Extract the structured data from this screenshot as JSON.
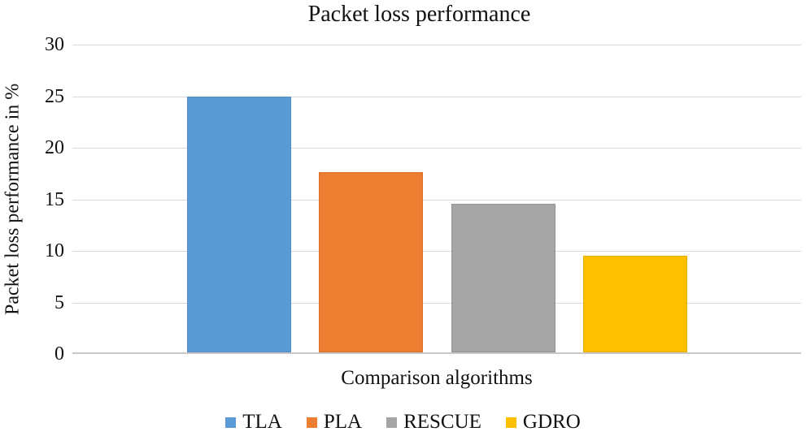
{
  "chart_data": {
    "type": "bar",
    "title": "Packet loss performance",
    "xlabel": "Comparison algorithms",
    "ylabel": "Packet loss performance in %",
    "categories": [
      "TLA",
      "PLA",
      "RESCUE",
      "GDRO"
    ],
    "values": [
      24.8,
      17.5,
      14.4,
      9.4
    ],
    "colors": [
      "#5B9BD5",
      "#ED7D31",
      "#A5A5A5",
      "#FFC000"
    ],
    "ylim": [
      0,
      30
    ],
    "yticks": [
      0,
      5,
      10,
      15,
      20,
      25,
      30
    ],
    "grid": "horizontal",
    "gridline_color": "#D9D9D9",
    "axis_line_color": "#C9C9C9",
    "legend_position": "bottom"
  }
}
